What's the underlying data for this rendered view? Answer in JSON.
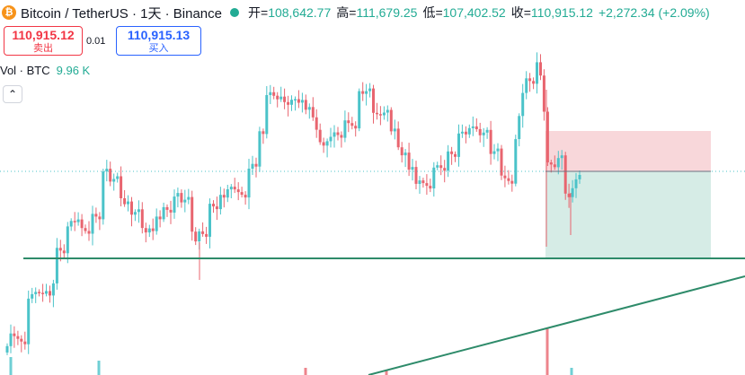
{
  "legend": {
    "coin_icon": "bitcoin-icon",
    "coin_glyph": "₿",
    "symbol": "Bitcoin / TetherUS · 1天 · Binance",
    "open_label": "开=",
    "open_value": "108,642.77",
    "high_label": "高=",
    "high_value": "111,679.25",
    "low_label": "低=",
    "low_value": "107,402.52",
    "close_label": "收=",
    "close_value": "110,915.12",
    "change": "+2,272.34 (+2.09%)"
  },
  "trade": {
    "sell_price": "110,915.12",
    "sell_label": "卖出",
    "spread": "0.01",
    "buy_price": "110,915.13",
    "buy_label": "买入"
  },
  "volume": {
    "label": "Vol · BTC",
    "value": "9.96 K"
  },
  "collapse_glyph": "⌃",
  "colors": {
    "up": "#4bc3c9",
    "down": "#e8656f",
    "trendline": "#2e8b6a",
    "stop_zone": "#f8d7da",
    "target_zone": "#d6ece6"
  },
  "chart_data": {
    "type": "candlestick",
    "symbol": "BTC/USDT",
    "interval": "1D",
    "exchange": "Binance",
    "last_close": 110915.12,
    "ohlc_last": {
      "open": 108642.77,
      "high": 111679.25,
      "low": 107402.52,
      "close": 110915.12
    },
    "candle_directions": "uudddduuudduduudduududddudduuduudduduuddudududduuduudduddudduduudddduududuuddudduudududddduuudduddduduuddduududdudududdduuddudduuduudduuduudddduuuudduddddduudduuu",
    "drawings": [
      "horizontal support line",
      "ascending trendline",
      "short position tool (risk/reward zones)"
    ]
  }
}
